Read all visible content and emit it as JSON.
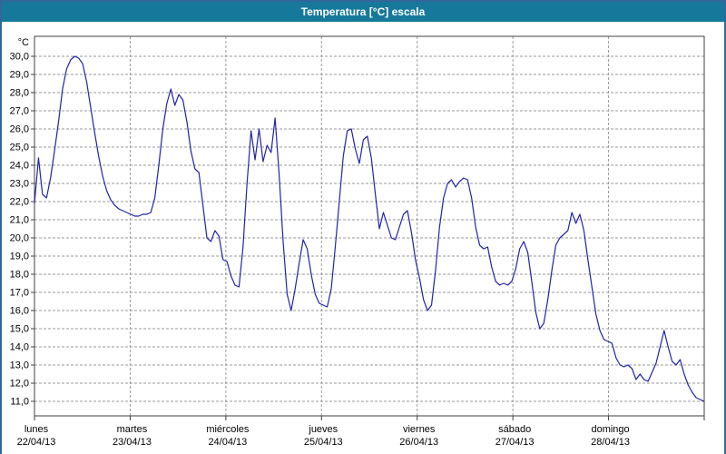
{
  "window": {
    "title": "Temperatura [°C] escala"
  },
  "colors": {
    "titlebar_bg": "#16799b",
    "titlebar_text": "#ffffff",
    "window_border": "#33669b",
    "plot_bg": "#ffffff",
    "grid": "#9a9a9a",
    "frame": "#404040",
    "line": "#2323a8",
    "label_text": "#000000"
  },
  "chart_data": {
    "type": "line",
    "title": "Temperatura [°C] escala",
    "xlabel": "",
    "ylabel": "°C",
    "unit_label": "°C",
    "legend": "none",
    "grid": "dashed",
    "ylim": [
      10.2,
      31.1
    ],
    "y_ticks": [
      11,
      12,
      13,
      14,
      15,
      16,
      17,
      18,
      19,
      20,
      21,
      22,
      23,
      24,
      25,
      26,
      27,
      28,
      29,
      30
    ],
    "y_tick_decimal_separator": ",",
    "x_categories": [
      {
        "day": "lunes",
        "date": "22/04/13"
      },
      {
        "day": "martes",
        "date": "23/04/13"
      },
      {
        "day": "miércoles",
        "date": "24/04/13"
      },
      {
        "day": "jueves",
        "date": "25/04/13"
      },
      {
        "day": "viernes",
        "date": "26/04/13"
      },
      {
        "day": "sábado",
        "date": "27/04/13"
      },
      {
        "day": "domingo",
        "date": "28/04/13"
      }
    ],
    "points_per_day": 24,
    "series": [
      {
        "name": "Temperatura",
        "values": [
          21.9,
          24.4,
          22.4,
          22.2,
          23.3,
          24.8,
          26.4,
          28.2,
          29.3,
          29.8,
          30.0,
          29.9,
          29.6,
          28.6,
          27.2,
          25.8,
          24.5,
          23.4,
          22.6,
          22.1,
          21.8,
          21.6,
          21.5,
          21.4,
          21.3,
          21.2,
          21.2,
          21.3,
          21.3,
          21.4,
          22.2,
          24.0,
          26.0,
          27.4,
          28.2,
          27.3,
          27.9,
          27.6,
          26.4,
          24.8,
          23.8,
          23.6,
          21.8,
          20.0,
          19.8,
          20.4,
          20.1,
          18.8,
          18.7,
          17.9,
          17.4,
          17.3,
          19.5,
          23.0,
          25.9,
          24.3,
          26.0,
          24.2,
          25.1,
          24.7,
          26.6,
          23.5,
          19.8,
          16.9,
          16.0,
          17.2,
          18.6,
          19.9,
          19.4,
          18.0,
          16.9,
          16.4,
          16.3,
          16.2,
          17.2,
          19.5,
          22.0,
          24.5,
          25.9,
          26.0,
          24.9,
          24.1,
          25.4,
          25.6,
          24.4,
          22.4,
          20.5,
          21.4,
          20.7,
          20.0,
          19.9,
          20.6,
          21.3,
          21.5,
          20.3,
          18.8,
          17.8,
          16.6,
          16.0,
          16.3,
          18.2,
          20.6,
          22.2,
          23.0,
          23.2,
          22.8,
          23.1,
          23.3,
          23.2,
          22.2,
          20.6,
          19.6,
          19.4,
          19.5,
          18.4,
          17.6,
          17.4,
          17.5,
          17.4,
          17.6,
          18.3,
          19.4,
          19.8,
          19.2,
          17.6,
          15.9,
          15.0,
          15.3,
          16.6,
          18.2,
          19.6,
          20.0,
          20.2,
          20.4,
          21.4,
          20.8,
          21.3,
          20.4,
          18.8,
          17.3,
          15.8,
          14.9,
          14.4,
          14.3,
          14.2,
          13.4,
          13.0,
          12.9,
          13.0,
          12.8,
          12.2,
          12.5,
          12.2,
          12.1,
          12.6,
          13.1,
          14.0,
          14.9,
          14.0,
          13.2,
          13.0,
          13.3,
          12.5,
          11.9,
          11.5,
          11.2,
          11.1,
          11.0
        ]
      }
    ]
  }
}
